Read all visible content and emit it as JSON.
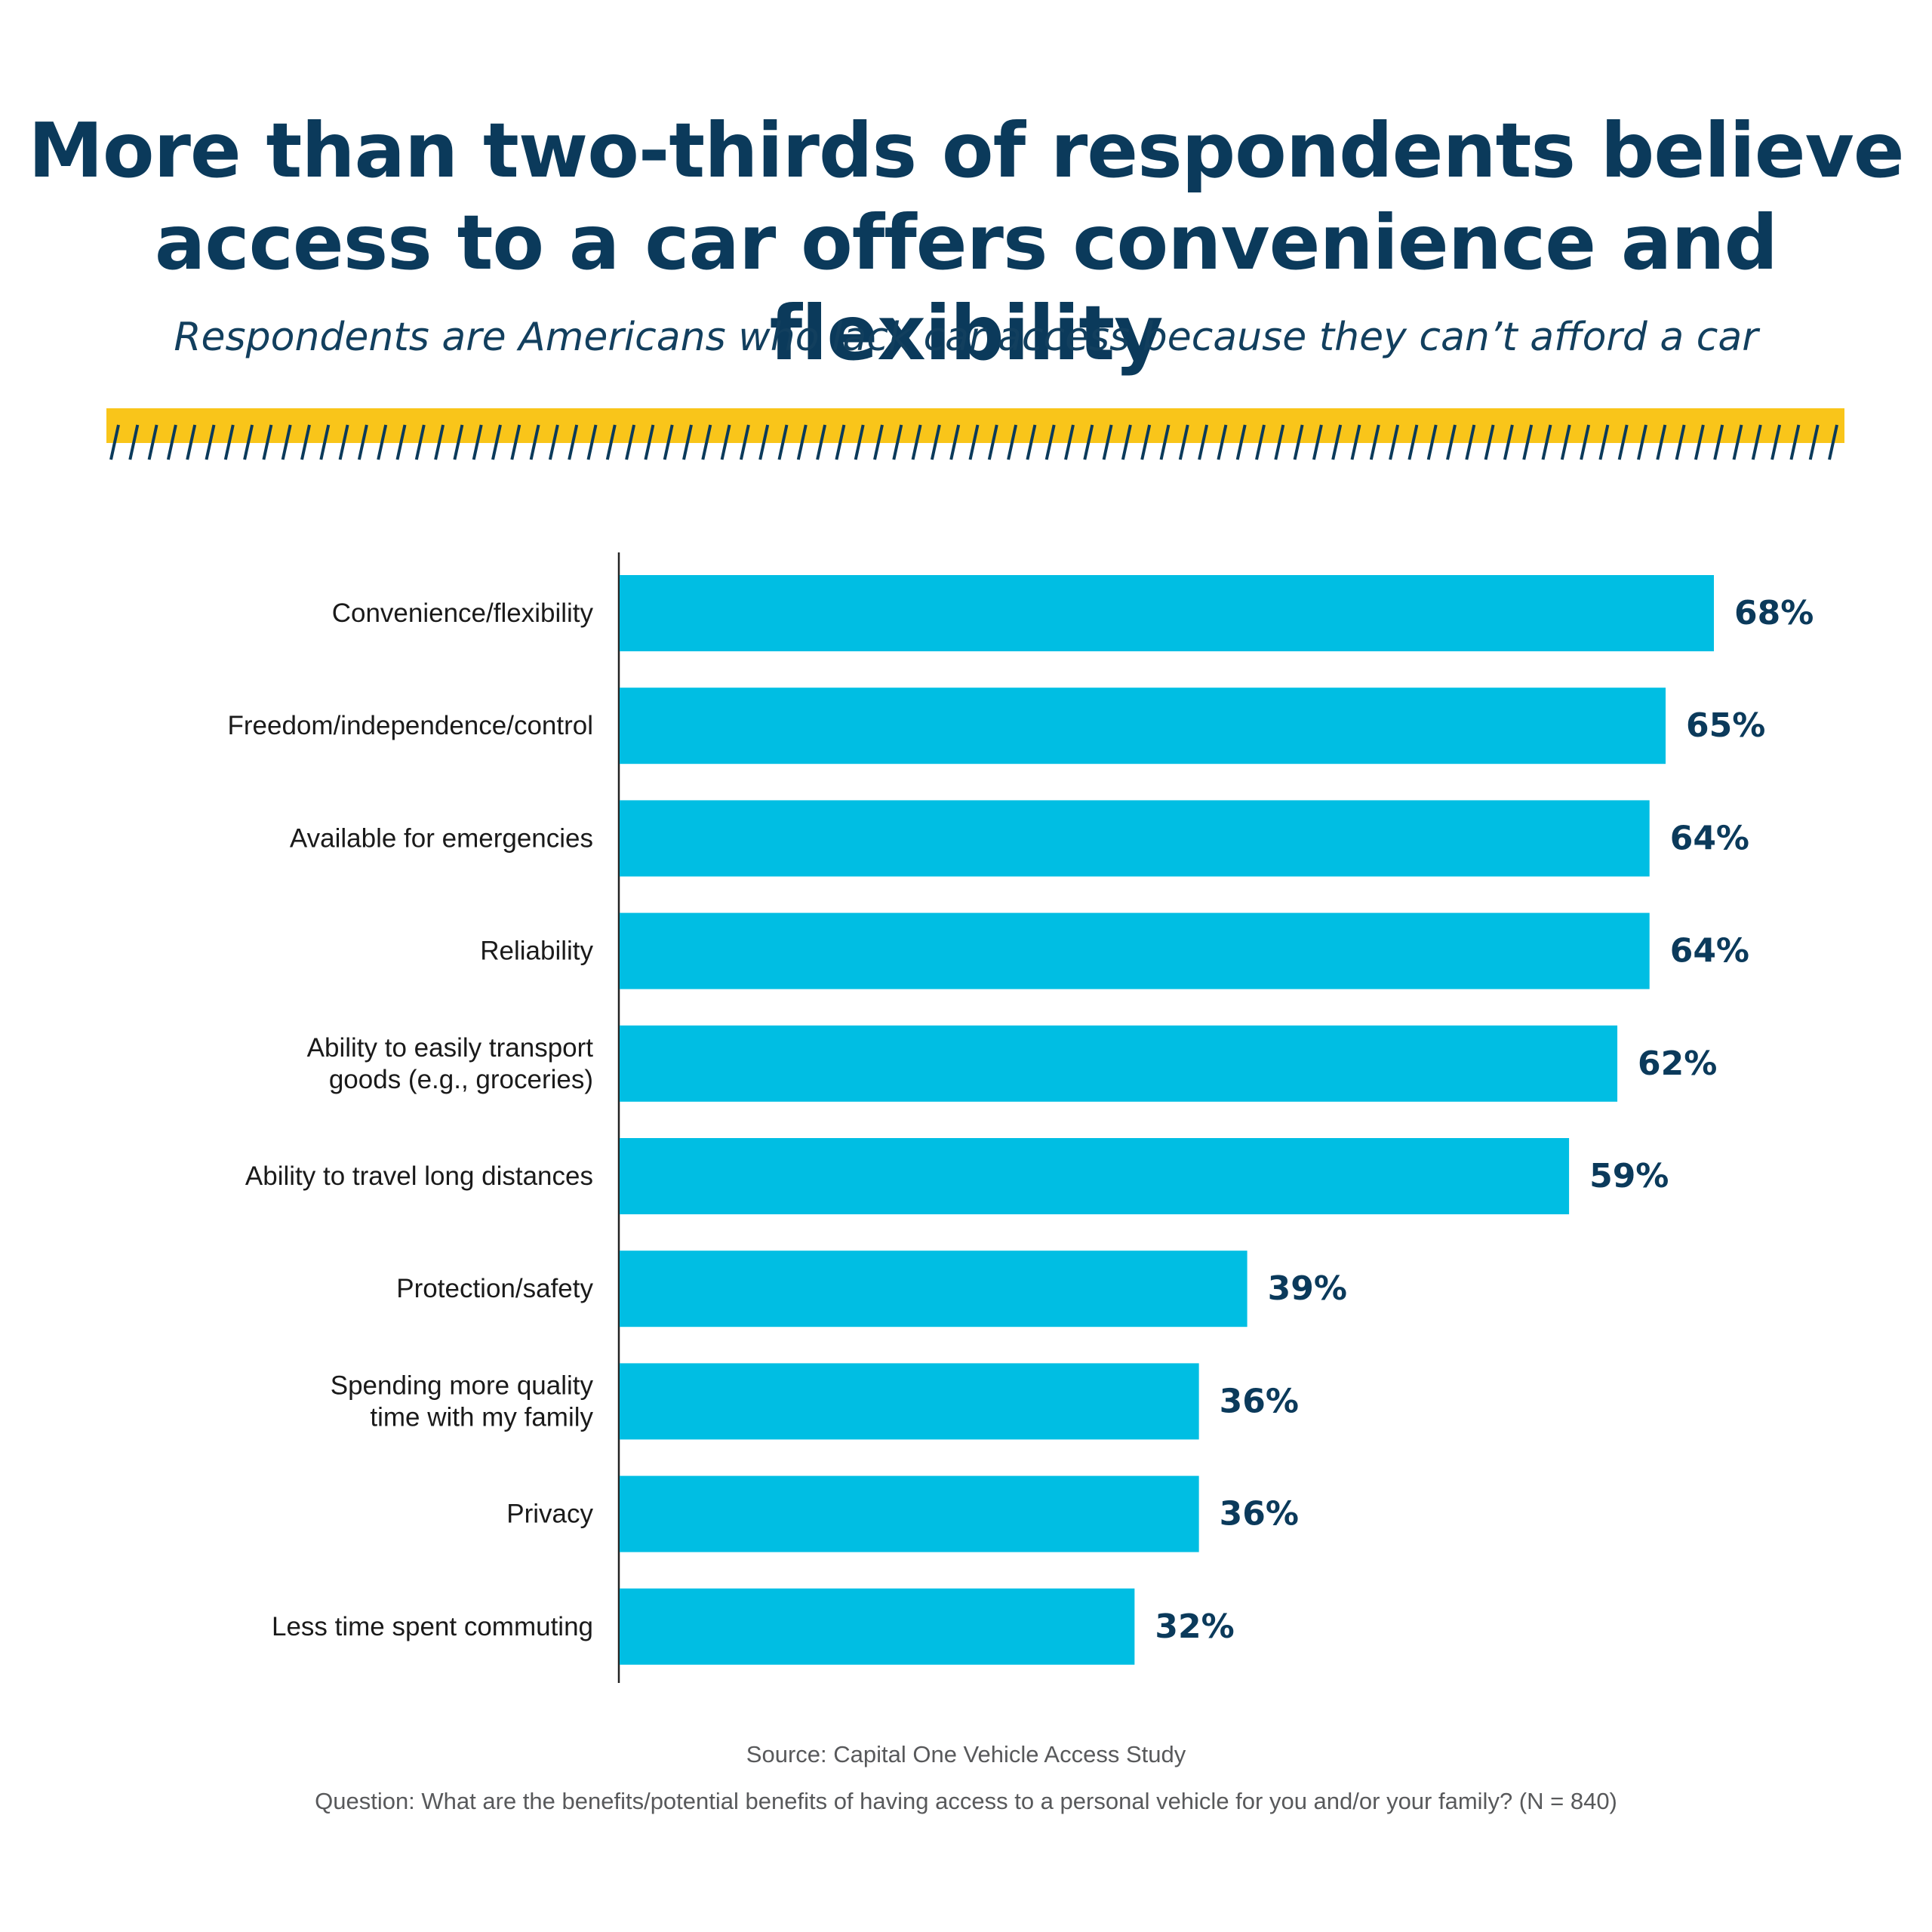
{
  "title_lines": [
    "More than two-thirds of respondents believe",
    "access to a car offers convenience and flexibility"
  ],
  "subtitle": "Respondents are Americans who lack car access because they can’t afford a car",
  "colors": {
    "title": "#0b3a5b",
    "bar": "#00bee3",
    "value_label": "#0b3a5b",
    "category_label": "#1a1a1a",
    "axis": "#222222",
    "stripe_band": "#f9c51a",
    "stripe_slash": "#0b3a5b",
    "footnote": "#58595b"
  },
  "chart_data": {
    "type": "bar",
    "orientation": "horizontal",
    "title": "More than two-thirds of respondents believe access to a car offers convenience and flexibility",
    "xlabel": "",
    "ylabel": "",
    "xlim": [
      0,
      68
    ],
    "grid": false,
    "legend": "none",
    "categories": [
      [
        "Convenience/flexibility"
      ],
      [
        "Freedom/independence/control"
      ],
      [
        "Available for emergencies"
      ],
      [
        "Reliability"
      ],
      [
        "Ability to easily transport",
        "goods (e.g., groceries)"
      ],
      [
        "Ability to travel long distances"
      ],
      [
        "Protection/safety"
      ],
      [
        "Spending more quality",
        "time with my family"
      ],
      [
        "Privacy"
      ],
      [
        "Less time spent commuting"
      ]
    ],
    "values": [
      68,
      65,
      64,
      64,
      62,
      59,
      39,
      36,
      36,
      32
    ],
    "value_labels": [
      "68%",
      "65%",
      "64%",
      "64%",
      "62%",
      "59%",
      "39%",
      "36%",
      "36%",
      "32%"
    ]
  },
  "footnotes": {
    "source": "Source: Capital One Vehicle Access Study",
    "question": "Question: What are the benefits/potential benefits of having access to a personal vehicle for you and/or your family? (N = 840)"
  }
}
